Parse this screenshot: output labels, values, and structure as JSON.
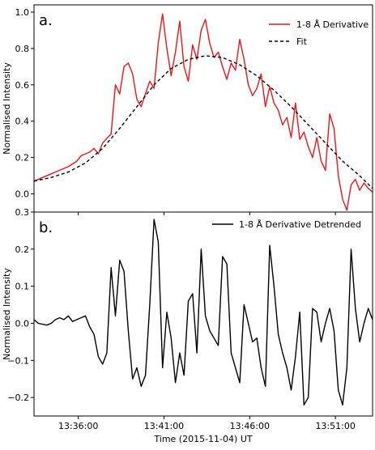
{
  "chart_data": [
    {
      "type": "line",
      "panel_label": "a.",
      "ylabel": "Normalised Intensity",
      "xlim": [
        "13:33:25",
        "13:53:10"
      ],
      "ylim": [
        -0.1,
        1.04
      ],
      "yticks": [
        0.0,
        0.2,
        0.4,
        0.6,
        0.8,
        1.0
      ],
      "ytick_labels": [
        "0.0",
        "0.2",
        "0.4",
        "0.6",
        "0.8",
        "1.0"
      ],
      "legend_position": "top-right",
      "series": [
        {
          "name": "1-8 Å Derivative",
          "color": "#e8151b",
          "style": "solid",
          "x": [
            "13:33:25",
            "13:33:55",
            "13:34:25",
            "13:34:55",
            "13:35:25",
            "13:35:55",
            "13:36:10",
            "13:36:40",
            "13:36:55",
            "13:37:10",
            "13:37:25",
            "13:37:55",
            "13:38:10",
            "13:38:25",
            "13:38:40",
            "13:38:55",
            "13:39:10",
            "13:39:25",
            "13:39:40",
            "13:39:55",
            "13:40:10",
            "13:40:25",
            "13:40:40",
            "13:40:55",
            "13:41:10",
            "13:41:25",
            "13:41:40",
            "13:41:55",
            "13:42:10",
            "13:42:25",
            "13:42:40",
            "13:42:55",
            "13:43:10",
            "13:43:25",
            "13:43:40",
            "13:43:55",
            "13:44:10",
            "13:44:25",
            "13:44:40",
            "13:44:55",
            "13:45:10",
            "13:45:25",
            "13:45:40",
            "13:45:55",
            "13:46:10",
            "13:46:25",
            "13:46:40",
            "13:46:55",
            "13:47:10",
            "13:47:25",
            "13:47:40",
            "13:47:55",
            "13:48:10",
            "13:48:25",
            "13:48:40",
            "13:48:55",
            "13:49:10",
            "13:49:25",
            "13:49:40",
            "13:49:55",
            "13:50:10",
            "13:50:25",
            "13:50:40",
            "13:50:55",
            "13:51:10",
            "13:51:25",
            "13:51:40",
            "13:51:55",
            "13:52:10",
            "13:52:25",
            "13:52:40",
            "13:52:55",
            "13:53:10"
          ],
          "y": [
            0.07,
            0.09,
            0.11,
            0.13,
            0.15,
            0.18,
            0.21,
            0.23,
            0.25,
            0.22,
            0.28,
            0.33,
            0.6,
            0.55,
            0.7,
            0.72,
            0.66,
            0.52,
            0.48,
            0.55,
            0.62,
            0.58,
            0.83,
            0.99,
            0.8,
            0.65,
            0.78,
            0.95,
            0.7,
            0.62,
            0.82,
            0.74,
            0.9,
            0.96,
            0.83,
            0.75,
            0.78,
            0.7,
            0.63,
            0.72,
            0.68,
            0.85,
            0.74,
            0.6,
            0.54,
            0.58,
            0.66,
            0.48,
            0.59,
            0.5,
            0.46,
            0.38,
            0.42,
            0.31,
            0.5,
            0.3,
            0.34,
            0.26,
            0.2,
            0.31,
            0.18,
            0.13,
            0.44,
            0.36,
            0.1,
            -0.03,
            -0.09,
            0.05,
            0.08,
            0.02,
            0.06,
            0.03,
            0.01
          ]
        },
        {
          "name": "Fit",
          "color": "#000000",
          "style": "dashed",
          "x": [
            "13:33:25",
            "13:34:25",
            "13:35:25",
            "13:36:25",
            "13:37:25",
            "13:38:25",
            "13:39:25",
            "13:40:25",
            "13:41:25",
            "13:42:25",
            "13:43:25",
            "13:44:25",
            "13:45:25",
            "13:46:25",
            "13:47:25",
            "13:48:25",
            "13:49:25",
            "13:50:25",
            "13:51:25",
            "13:52:25",
            "13:53:10"
          ],
          "y": [
            0.07,
            0.09,
            0.12,
            0.17,
            0.25,
            0.36,
            0.48,
            0.6,
            0.69,
            0.74,
            0.76,
            0.75,
            0.71,
            0.65,
            0.57,
            0.48,
            0.38,
            0.28,
            0.18,
            0.1,
            0.03
          ]
        }
      ]
    },
    {
      "type": "line",
      "panel_label": "b.",
      "ylabel": "Normalised Intensity",
      "xlabel": "Time (2015-11-04) UT",
      "xlim": [
        "13:33:25",
        "13:53:10"
      ],
      "ylim": [
        -0.25,
        0.3
      ],
      "yticks": [
        -0.2,
        -0.1,
        0.0,
        0.1,
        0.2,
        0.3
      ],
      "ytick_labels": [
        "−0.2",
        "−0.1",
        "0.0",
        "0.1",
        "0.2",
        "0.3"
      ],
      "xticks": [
        "13:36:00",
        "13:41:00",
        "13:46:00",
        "13:51:00"
      ],
      "legend_position": "top-right",
      "series": [
        {
          "name": "1-8 Å Derivative Detrended",
          "color": "#000000",
          "style": "solid",
          "x": [
            "13:33:25",
            "13:33:40",
            "13:34:10",
            "13:34:25",
            "13:34:40",
            "13:34:55",
            "13:35:10",
            "13:35:25",
            "13:35:40",
            "13:35:55",
            "13:36:10",
            "13:36:25",
            "13:36:40",
            "13:36:55",
            "13:37:10",
            "13:37:25",
            "13:37:40",
            "13:37:55",
            "13:38:10",
            "13:38:25",
            "13:38:40",
            "13:38:55",
            "13:39:10",
            "13:39:25",
            "13:39:40",
            "13:39:55",
            "13:40:10",
            "13:40:25",
            "13:40:40",
            "13:40:55",
            "13:41:10",
            "13:41:25",
            "13:41:40",
            "13:41:55",
            "13:42:10",
            "13:42:25",
            "13:42:40",
            "13:42:55",
            "13:43:10",
            "13:43:25",
            "13:43:40",
            "13:43:55",
            "13:44:10",
            "13:44:25",
            "13:44:40",
            "13:44:55",
            "13:45:10",
            "13:45:25",
            "13:45:40",
            "13:45:55",
            "13:46:10",
            "13:46:25",
            "13:46:40",
            "13:46:55",
            "13:47:10",
            "13:47:25",
            "13:47:40",
            "13:47:55",
            "13:48:10",
            "13:48:25",
            "13:48:40",
            "13:48:55",
            "13:49:10",
            "13:49:25",
            "13:49:40",
            "13:49:55",
            "13:50:10",
            "13:50:25",
            "13:50:40",
            "13:50:55",
            "13:51:10",
            "13:51:25",
            "13:51:40",
            "13:51:55",
            "13:52:10",
            "13:52:25",
            "13:52:40",
            "13:52:55",
            "13:53:10"
          ],
          "y": [
            0.01,
            0.0,
            -0.005,
            0.0,
            0.01,
            0.015,
            0.01,
            0.02,
            0.005,
            0.01,
            0.015,
            0.02,
            -0.01,
            -0.03,
            -0.09,
            -0.11,
            -0.08,
            0.15,
            0.02,
            0.17,
            0.14,
            -0.02,
            -0.15,
            -0.12,
            -0.17,
            -0.14,
            0.05,
            0.28,
            0.22,
            -0.12,
            0.03,
            -0.04,
            -0.16,
            -0.08,
            -0.14,
            0.06,
            0.08,
            -0.08,
            0.2,
            0.02,
            -0.02,
            -0.04,
            -0.06,
            0.18,
            0.16,
            -0.08,
            -0.12,
            -0.16,
            0.05,
            0.0,
            -0.05,
            -0.04,
            -0.12,
            -0.17,
            0.21,
            0.1,
            -0.03,
            -0.08,
            -0.12,
            -0.18,
            -0.09,
            0.03,
            -0.22,
            -0.2,
            0.04,
            0.03,
            -0.05,
            0.0,
            0.04,
            -0.02,
            -0.18,
            -0.22,
            -0.12,
            0.2,
            0.04,
            -0.05,
            0.0,
            0.04,
            0.01
          ]
        }
      ]
    }
  ]
}
